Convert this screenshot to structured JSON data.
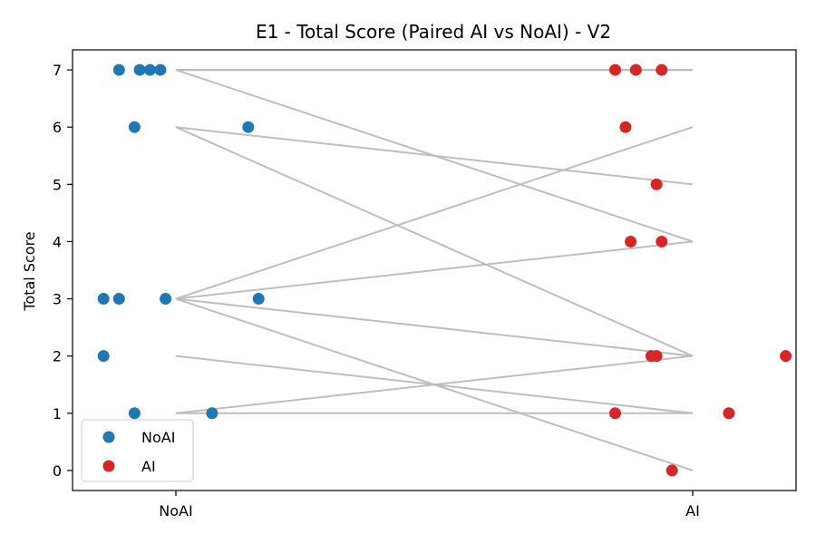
{
  "chart_data": {
    "type": "scatter",
    "title": "E1 - Total Score (Paired AI vs NoAI) - V2",
    "xlabel": "",
    "ylabel": "Total Score",
    "categories": [
      "NoAI",
      "AI"
    ],
    "ylim": [
      -0.35,
      7.35
    ],
    "yticks": [
      0,
      1,
      2,
      3,
      4,
      5,
      6,
      7
    ],
    "grid": false,
    "legend": {
      "position": "lower-left",
      "entries": [
        {
          "name": "NoAI",
          "color": "#1f77b4"
        },
        {
          "name": "AI",
          "color": "#d62728"
        }
      ]
    },
    "line_color": "#bbbbbb",
    "series": [
      {
        "name": "NoAI",
        "color": "#1f77b4"
      },
      {
        "name": "AI",
        "color": "#d62728"
      }
    ],
    "pairs": [
      {
        "noai": 7,
        "ai": 7,
        "jitter_noai": -0.11,
        "jitter_ai": -0.15
      },
      {
        "noai": 7,
        "ai": 7,
        "jitter_noai": -0.07,
        "jitter_ai": -0.11
      },
      {
        "noai": 7,
        "ai": 7,
        "jitter_noai": -0.03,
        "jitter_ai": -0.06
      },
      {
        "noai": 7,
        "ai": 4,
        "jitter_noai": -0.05,
        "jitter_ai": -0.12
      },
      {
        "noai": 6,
        "ai": 5,
        "jitter_noai": -0.08,
        "jitter_ai": -0.07
      },
      {
        "noai": 6,
        "ai": 2,
        "jitter_noai": 0.14,
        "jitter_ai": -0.07
      },
      {
        "noai": 3,
        "ai": 6,
        "jitter_noai": -0.14,
        "jitter_ai": -0.13
      },
      {
        "noai": 3,
        "ai": 4,
        "jitter_noai": -0.11,
        "jitter_ai": -0.06
      },
      {
        "noai": 3,
        "ai": 2,
        "jitter_noai": -0.02,
        "jitter_ai": 0.18
      },
      {
        "noai": 3,
        "ai": 0,
        "jitter_noai": 0.16,
        "jitter_ai": -0.04
      },
      {
        "noai": 2,
        "ai": 1,
        "jitter_noai": -0.14,
        "jitter_ai": -0.15
      },
      {
        "noai": 1,
        "ai": 2,
        "jitter_noai": -0.08,
        "jitter_ai": -0.08
      },
      {
        "noai": 1,
        "ai": 1,
        "jitter_noai": 0.07,
        "jitter_ai": 0.07
      }
    ]
  }
}
